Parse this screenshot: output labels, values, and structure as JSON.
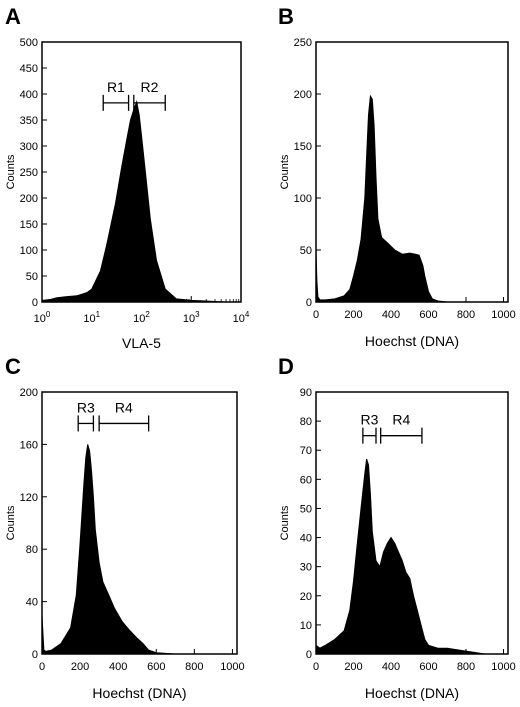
{
  "chart_data": [
    {
      "panel": "A",
      "type": "area",
      "xscale": "log",
      "xlabel": "VLA-5",
      "ylabel": "Counts",
      "xlim": [
        1,
        10000
      ],
      "ylim": [
        0,
        500
      ],
      "xticks": [
        {
          "base": "10",
          "exp": "0",
          "value": 1
        },
        {
          "base": "10",
          "exp": "1",
          "value": 10
        },
        {
          "base": "10",
          "exp": "2",
          "value": 100
        },
        {
          "base": "10",
          "exp": "3",
          "value": 1000
        },
        {
          "base": "10",
          "exp": "4",
          "value": 10000
        }
      ],
      "yticks": [
        "0",
        "50",
        "100",
        "150",
        "200",
        "250",
        "300",
        "350",
        "400",
        "450",
        "500"
      ],
      "gates": [
        {
          "label": "R1",
          "x": [
            17,
            55
          ],
          "y": 383
        },
        {
          "label": "R2",
          "x": [
            70,
            300
          ],
          "y": 383
        }
      ],
      "series": [
        {
          "x": [
            1,
            1.5,
            2,
            3,
            5,
            8,
            10,
            15,
            20,
            30,
            40,
            50,
            60,
            70,
            80,
            90,
            100,
            120,
            150,
            200,
            300,
            500,
            1000,
            2000,
            3000,
            5000,
            10000
          ],
          "y": [
            3,
            5,
            8,
            10,
            12,
            18,
            25,
            60,
            110,
            190,
            260,
            310,
            350,
            370,
            385,
            360,
            320,
            250,
            160,
            80,
            25,
            6,
            3,
            2,
            1,
            0,
            0
          ]
        }
      ]
    },
    {
      "panel": "B",
      "type": "area",
      "xlabel": "Hoechst (DNA)",
      "ylabel": "Counts",
      "xlim": [
        0,
        1024
      ],
      "ylim": [
        0,
        250
      ],
      "xticks": [
        "0",
        "200",
        "400",
        "600",
        "800",
        "1000"
      ],
      "yticks": [
        "0",
        "50",
        "100",
        "150",
        "200",
        "250"
      ],
      "series": [
        {
          "x": [
            0,
            5,
            10,
            20,
            50,
            100,
            150,
            180,
            200,
            220,
            240,
            260,
            270,
            280,
            290,
            300,
            310,
            320,
            330,
            350,
            380,
            420,
            460,
            500,
            530,
            550,
            570,
            580,
            600,
            620,
            650,
            700,
            800,
            1000
          ],
          "y": [
            50,
            20,
            5,
            2,
            2,
            3,
            6,
            12,
            25,
            40,
            60,
            100,
            140,
            180,
            198,
            195,
            170,
            120,
            80,
            62,
            57,
            50,
            46,
            47,
            46,
            45,
            35,
            25,
            10,
            3,
            1,
            0,
            0,
            0
          ]
        }
      ]
    },
    {
      "panel": "C",
      "type": "area",
      "xlabel": "Hoechst (DNA)",
      "ylabel": "Counts",
      "xlim": [
        0,
        1024
      ],
      "ylim": [
        0,
        200
      ],
      "xticks": [
        "0",
        "200",
        "400",
        "600",
        "800",
        "1000"
      ],
      "yticks": [
        "0",
        "40",
        "80",
        "120",
        "160",
        "200"
      ],
      "gates": [
        {
          "label": "R3",
          "x": [
            190,
            270
          ],
          "y": 176
        },
        {
          "label": "R4",
          "x": [
            300,
            560
          ],
          "y": 176
        }
      ],
      "series": [
        {
          "x": [
            0,
            5,
            10,
            20,
            50,
            100,
            150,
            180,
            200,
            220,
            230,
            240,
            250,
            260,
            270,
            280,
            300,
            320,
            350,
            380,
            420,
            460,
            500,
            530,
            560,
            600,
            700,
            1000
          ],
          "y": [
            30,
            15,
            3,
            2,
            3,
            8,
            20,
            45,
            85,
            130,
            150,
            160,
            155,
            140,
            120,
            95,
            70,
            55,
            45,
            35,
            25,
            18,
            12,
            8,
            3,
            1,
            0,
            0
          ]
        }
      ]
    },
    {
      "panel": "D",
      "type": "area",
      "xlabel": "Hoechst (DNA)",
      "ylabel": "Counts",
      "xlim": [
        0,
        1024
      ],
      "ylim": [
        0,
        90
      ],
      "xticks": [
        "0",
        "200",
        "400",
        "600",
        "800",
        "1000"
      ],
      "yticks": [
        "0",
        "10",
        "20",
        "30",
        "40",
        "50",
        "60",
        "70",
        "80",
        "90"
      ],
      "gates": [
        {
          "label": "R3",
          "x": [
            250,
            320
          ],
          "y": 75
        },
        {
          "label": "R4",
          "x": [
            345,
            565
          ],
          "y": 75
        }
      ],
      "series": [
        {
          "x": [
            0,
            20,
            50,
            100,
            150,
            180,
            200,
            220,
            240,
            260,
            270,
            280,
            290,
            300,
            320,
            340,
            360,
            380,
            400,
            420,
            440,
            460,
            480,
            500,
            520,
            540,
            560,
            580,
            600,
            650,
            700,
            800,
            900,
            1000
          ],
          "y": [
            3,
            2,
            3,
            5,
            8,
            15,
            25,
            38,
            50,
            62,
            67,
            65,
            55,
            42,
            32,
            30,
            35,
            38,
            40,
            38,
            35,
            32,
            28,
            26,
            20,
            15,
            10,
            5,
            3,
            2,
            2,
            1,
            0,
            0
          ]
        }
      ]
    }
  ]
}
